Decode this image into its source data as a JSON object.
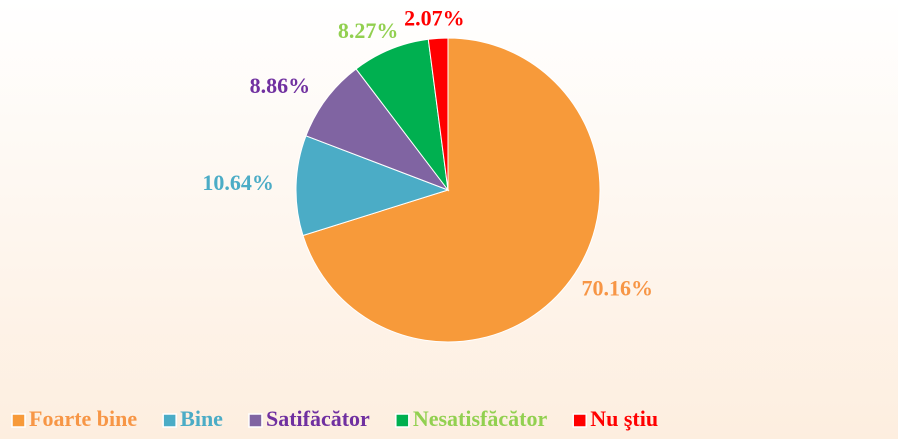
{
  "chart_data": {
    "type": "pie",
    "categories": [
      "Foarte bine",
      "Bine",
      "Satifăcător",
      "Nesatisfăcător",
      "Nu ştiu"
    ],
    "values": [
      70.16,
      10.64,
      8.86,
      8.27,
      2.07
    ],
    "value_labels": [
      "70.16%",
      "10.64%",
      "8.86%",
      "8.27%",
      "2.07%"
    ],
    "colors": [
      "#f79a3a",
      "#4bacc6",
      "#8064a2",
      "#00b050",
      "#ff0000"
    ],
    "label_colors": [
      "#f79646",
      "#4bacc6",
      "#7030a0",
      "#92d050",
      "#ff0000"
    ],
    "legend": "bottom"
  }
}
